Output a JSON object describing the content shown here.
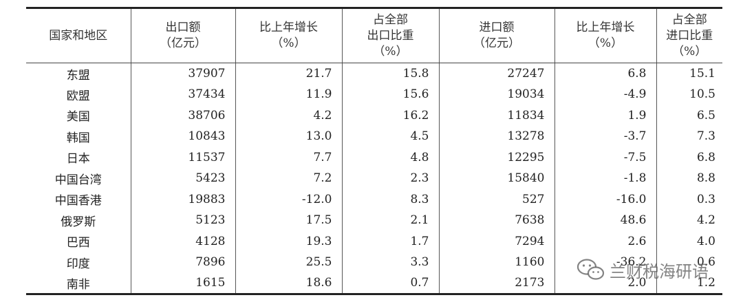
{
  "columns": [
    {
      "lines": [
        "国家和地区"
      ]
    },
    {
      "lines": [
        "出口额",
        "（亿元）"
      ]
    },
    {
      "lines": [
        "比上年增长",
        "（%）"
      ]
    },
    {
      "lines": [
        "占全部",
        "出口比重",
        "（%）"
      ]
    },
    {
      "lines": [
        "进口额",
        "（亿元）"
      ]
    },
    {
      "lines": [
        "比上年增长",
        "（%）"
      ]
    },
    {
      "lines": [
        "占全部",
        "进口比重",
        "（%）"
      ]
    }
  ],
  "rows": [
    [
      "东盟",
      "37907",
      "21.7",
      "15.8",
      "27247",
      "6.8",
      "15.1"
    ],
    [
      "欧盟",
      "37434",
      "11.9",
      "15.6",
      "19034",
      "-4.9",
      "10.5"
    ],
    [
      "美国",
      "38706",
      "4.2",
      "16.2",
      "11834",
      "1.9",
      "6.5"
    ],
    [
      "韩国",
      "10843",
      "13.0",
      "4.5",
      "13278",
      "-3.7",
      "7.3"
    ],
    [
      "日本",
      "11537",
      "7.7",
      "4.8",
      "12295",
      "-7.5",
      "6.8"
    ],
    [
      "中国台湾",
      "5423",
      "7.2",
      "2.3",
      "15840",
      "-1.8",
      "8.8"
    ],
    [
      "中国香港",
      "19883",
      "-12.0",
      "8.3",
      "527",
      "-16.0",
      "0.3"
    ],
    [
      "俄罗斯",
      "5123",
      "17.5",
      "2.1",
      "7638",
      "48.6",
      "4.2"
    ],
    [
      "巴西",
      "4128",
      "19.3",
      "1.7",
      "7294",
      "2.6",
      "4.0"
    ],
    [
      "印度",
      "7896",
      "25.5",
      "3.3",
      "1160",
      "-36.2",
      "0.6"
    ],
    [
      "南非",
      "1615",
      "18.6",
      "0.7",
      "2173",
      "2.0",
      "1.2"
    ]
  ],
  "watermark": {
    "text": "兰财税海研语",
    "icon": "wechat-icon"
  }
}
